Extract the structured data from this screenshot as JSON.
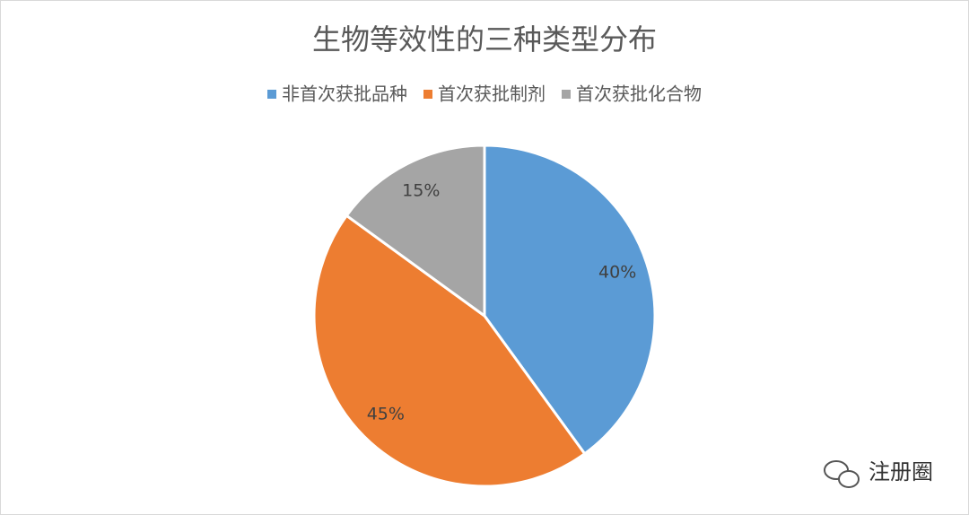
{
  "chart_data": {
    "type": "pie",
    "title": "生物等效性的三种类型分布",
    "categories": [
      "非首次获批品种",
      "首次获批制剂",
      "首次获批化合物"
    ],
    "values": [
      40,
      45,
      15
    ],
    "value_labels": [
      "40%",
      "45%",
      "15%"
    ],
    "colors": [
      "#5b9bd5",
      "#ed7d31",
      "#a5a5a5"
    ],
    "legend": "top"
  },
  "watermark": "注册圈"
}
